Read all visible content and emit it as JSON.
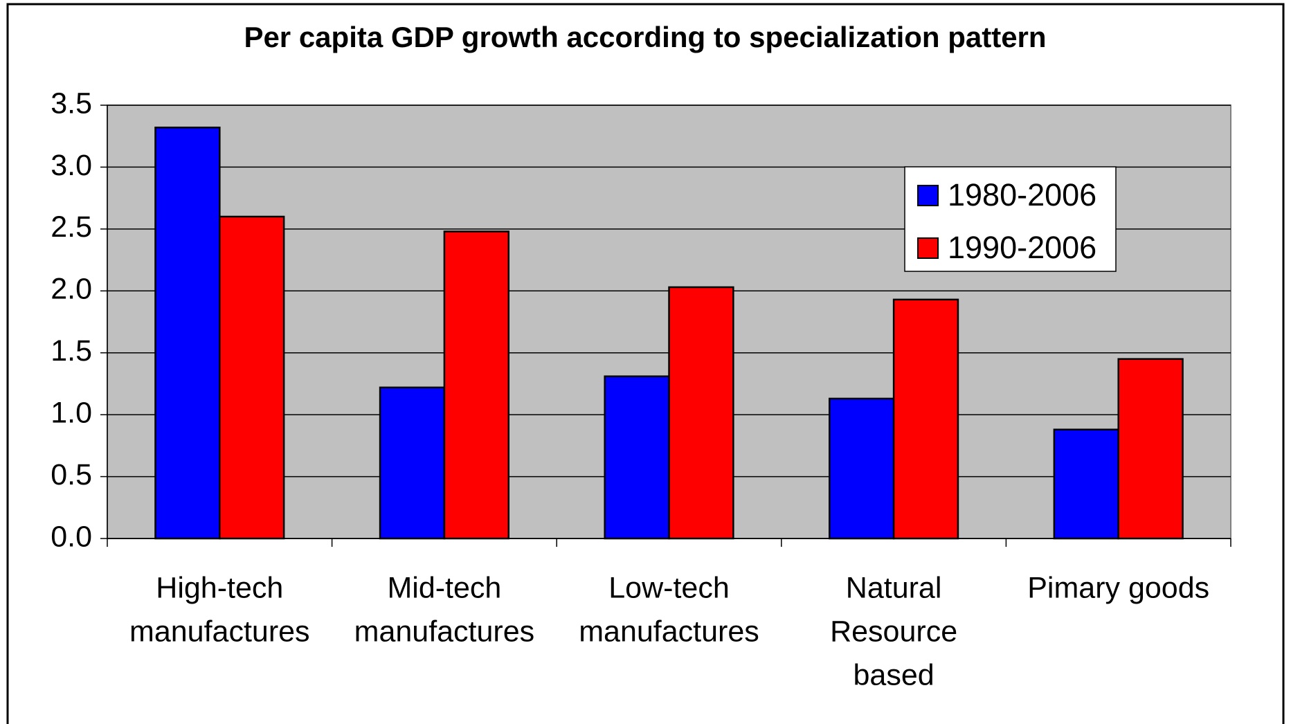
{
  "chart_data": {
    "type": "bar",
    "title": "Per capita GDP growth according to specialization pattern",
    "categories": [
      [
        "High-tech",
        "manufactures"
      ],
      [
        "Mid-tech",
        "manufactures"
      ],
      [
        "Low-tech",
        "manufactures"
      ],
      [
        "Natural",
        "Resource",
        "based"
      ],
      [
        "Pimary goods"
      ]
    ],
    "series": [
      {
        "name": "1980-2006",
        "color": "#0000ff",
        "values": [
          3.32,
          1.22,
          1.31,
          1.13,
          0.88
        ]
      },
      {
        "name": "1990-2006",
        "color": "#ff0000",
        "values": [
          2.6,
          2.48,
          2.03,
          1.93,
          1.45
        ]
      }
    ],
    "ylim": [
      0,
      3.5
    ],
    "yticks": [
      {
        "value": 0,
        "label": "0.0"
      },
      0.5,
      {
        "value": 1,
        "label": "1.0"
      },
      1.5,
      {
        "value": 2,
        "label": "2.0"
      },
      2.5,
      {
        "value": 3,
        "label": "3.0"
      },
      3.5
    ],
    "grid": true,
    "legend": "right",
    "plot_background": "#c0c0c0"
  }
}
